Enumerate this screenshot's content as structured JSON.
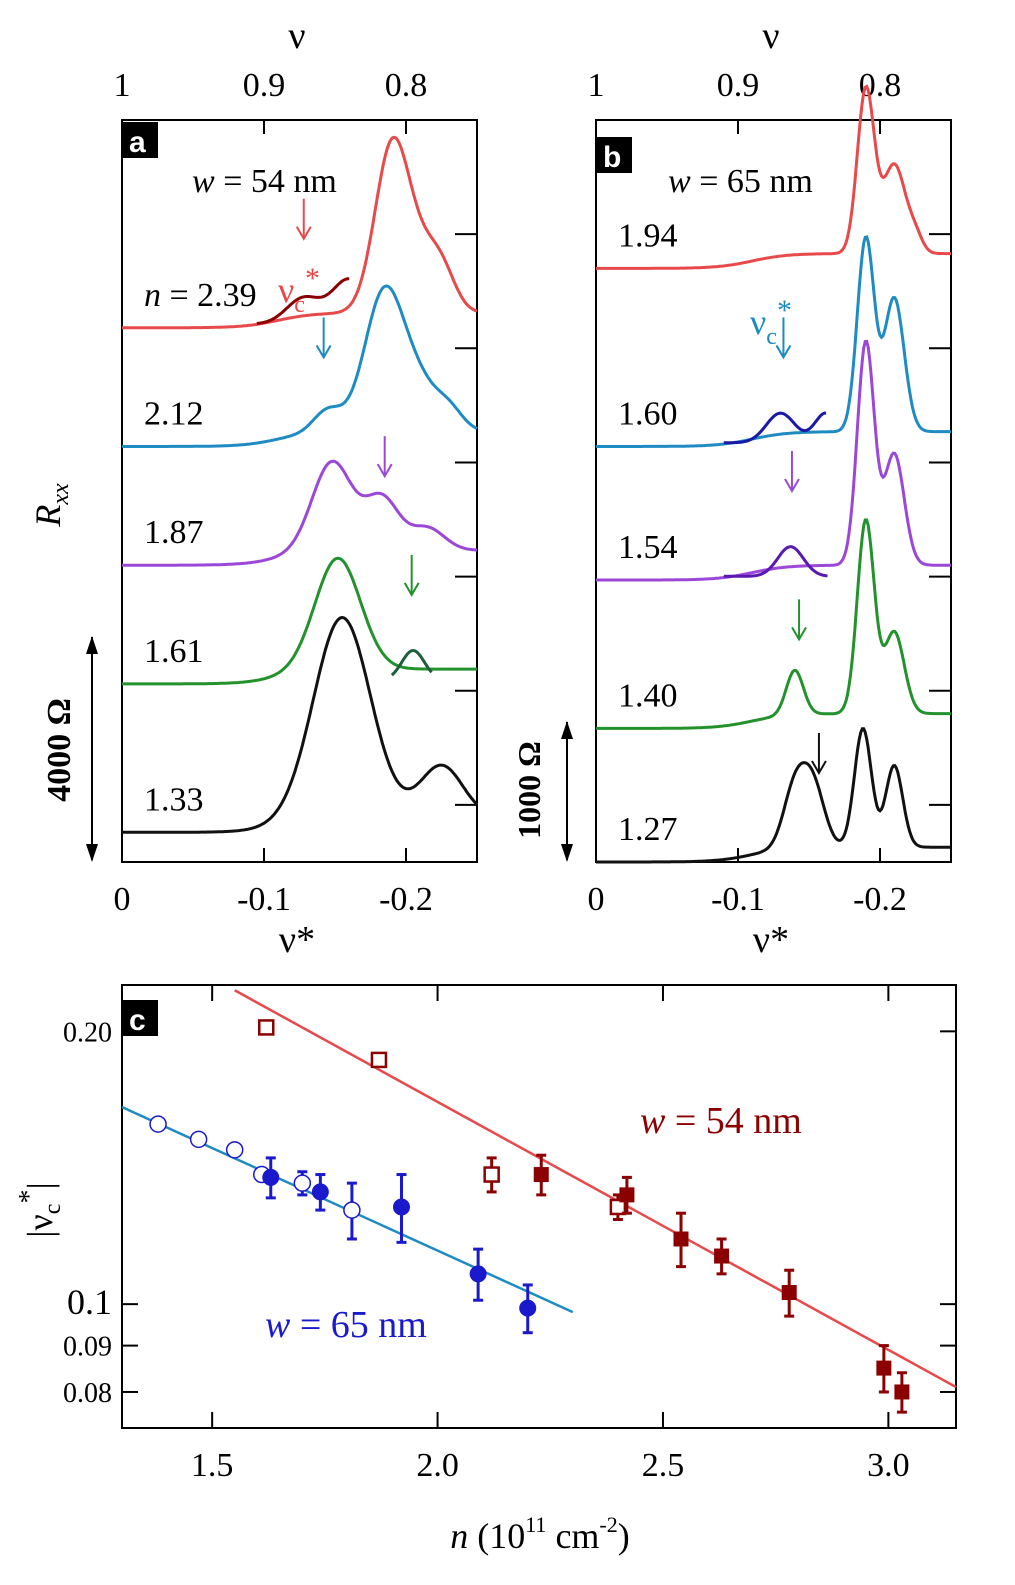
{
  "chart_data": [
    {
      "panel": "a",
      "type": "line",
      "annotation": "w = 54 nm",
      "top_axis": {
        "label": "ν",
        "ticks": [
          "1",
          "0.9",
          "0.8"
        ],
        "tick_values": [
          0,
          -0.1,
          -0.2
        ]
      },
      "bottom_axis": {
        "label": "ν*",
        "ticks": [
          "0",
          "-0.1",
          "-0.2"
        ],
        "tick_values": [
          0,
          -0.1,
          -0.2
        ],
        "range": [
          0,
          -0.25
        ]
      },
      "y_label": "R_xx",
      "scale_bar": "4000 Ω",
      "arrow_label": {
        "base": "ν",
        "sub": "c",
        "sup": "*"
      },
      "series": [
        {
          "name": "n = 2.39",
          "label_prefix": "n",
          "label_value": "= 2.39",
          "color": "#e8494a",
          "baseline": 0.72,
          "peaks": [
            [
              -0.19,
              0.22,
              0.012
            ],
            [
              -0.21,
              0.06,
              0.012
            ],
            [
              -0.225,
              0.05,
              0.01
            ]
          ],
          "arrow_x": -0.128,
          "inset": {
            "color": "#8b0000",
            "x0": -0.095,
            "x1": -0.16,
            "peaks": [
              [
                -0.128,
                0.035,
                0.012
              ],
              [
                -0.16,
                0.06,
                0.012
              ]
            ]
          }
        },
        {
          "name": "2.12",
          "label_value": "2.12",
          "color": "#1e8bc3",
          "baseline": 0.56,
          "peaks": [
            [
              -0.185,
              0.19,
              0.014
            ],
            [
              -0.145,
              0.03,
              0.01
            ],
            [
              -0.21,
              0.05,
              0.012
            ],
            [
              -0.23,
              0.03,
              0.01
            ]
          ],
          "arrow_x": -0.142
        },
        {
          "name": "1.87",
          "label_value": "1.87",
          "color": "#9b48d8",
          "baseline": 0.4,
          "peaks": [
            [
              -0.148,
              0.12,
              0.014
            ],
            [
              -0.183,
              0.07,
              0.012
            ],
            [
              -0.215,
              0.03,
              0.012
            ]
          ],
          "arrow_x": -0.185
        },
        {
          "name": "1.61",
          "label_value": "1.61",
          "color": "#23922d",
          "baseline": 0.24,
          "peaks": [
            [
              -0.152,
              0.15,
              0.016
            ]
          ],
          "arrow_x": -0.204,
          "inset": {
            "color": "#1d5f3a",
            "x0": -0.19,
            "x1": -0.218,
            "peaks": [
              [
                -0.205,
                0.04,
                0.008
              ]
            ]
          }
        },
        {
          "name": "1.33",
          "label_value": "1.33",
          "color": "#111111",
          "baseline": 0.04,
          "peaks": [
            [
              -0.155,
              0.27,
              0.02
            ],
            [
              -0.225,
              0.07,
              0.015
            ]
          ]
        }
      ]
    },
    {
      "panel": "b",
      "type": "line",
      "annotation": "w = 65 nm",
      "top_axis": {
        "label": "ν",
        "ticks": [
          "1",
          "0.9",
          "0.8"
        ],
        "tick_values": [
          0,
          -0.1,
          -0.2
        ]
      },
      "bottom_axis": {
        "label": "ν*",
        "ticks": [
          "0",
          "-0.1",
          "-0.2"
        ],
        "tick_values": [
          0,
          -0.1,
          -0.2
        ],
        "range": [
          0,
          -0.25
        ]
      },
      "scale_bar": "1000 Ω",
      "arrow_label": {
        "base": "ν",
        "sub": "c",
        "sup": "*"
      },
      "series": [
        {
          "name": "1.94",
          "label_value": "1.94",
          "color": "#e8494a",
          "baseline": 0.8,
          "peaks": [
            [
              -0.19,
              0.22,
              0.006
            ],
            [
              -0.21,
              0.12,
              0.008
            ],
            [
              -0.225,
              0.02,
              0.005
            ]
          ]
        },
        {
          "name": "1.60",
          "label_value": "1.60",
          "color": "#1e8bc3",
          "baseline": 0.56,
          "peaks": [
            [
              -0.19,
              0.26,
              0.006
            ],
            [
              -0.21,
              0.18,
              0.007
            ]
          ],
          "arrow_x": -0.132,
          "inset": {
            "color": "#1a1aa8",
            "x0": -0.09,
            "x1": -0.162,
            "peaks": [
              [
                -0.13,
                0.04,
                0.01
              ],
              [
                -0.162,
                0.04,
                0.008
              ]
            ]
          }
        },
        {
          "name": "1.54",
          "label_value": "1.54",
          "color": "#9b48d8",
          "baseline": 0.38,
          "peaks": [
            [
              -0.19,
              0.3,
              0.006
            ],
            [
              -0.21,
              0.15,
              0.007
            ]
          ],
          "arrow_x": -0.138,
          "inset": {
            "color": "#5a1ab0",
            "x0": -0.09,
            "x1": -0.163,
            "peaks": [
              [
                -0.137,
                0.04,
                0.009
              ]
            ]
          }
        },
        {
          "name": "1.40",
          "label_value": "1.40",
          "color": "#23922d",
          "baseline": 0.18,
          "peaks": [
            [
              -0.14,
              0.06,
              0.006
            ],
            [
              -0.19,
              0.26,
              0.006
            ],
            [
              -0.21,
              0.11,
              0.007
            ]
          ],
          "arrow_x": -0.143
        },
        {
          "name": "1.27",
          "label_value": "1.27",
          "color": "#111111",
          "baseline": 0.0,
          "peaks": [
            [
              -0.14,
              0.08,
              0.008
            ],
            [
              -0.153,
              0.08,
              0.008
            ],
            [
              -0.188,
              0.16,
              0.006
            ],
            [
              -0.21,
              0.11,
              0.006
            ]
          ],
          "arrow_x": -0.157
        }
      ]
    },
    {
      "panel": "c",
      "type": "scatter",
      "xlabel": {
        "base": "n (10",
        "sup1": "11",
        "mid": " cm",
        "sup2": "-2",
        "end": ")"
      },
      "ylabel": {
        "base": "|ν",
        "sub": "c",
        "sup": "*",
        "end": "|"
      },
      "y_scale": "log",
      "xlim": [
        1.3,
        3.15
      ],
      "ylim": [
        0.073,
        0.225
      ],
      "x_ticks": [
        "1.5",
        "2.0",
        "2.5",
        "3.0"
      ],
      "x_tick_values": [
        1.5,
        2.0,
        2.5,
        3.0
      ],
      "y_ticks": [
        "0.20",
        "0.1",
        "0.09",
        "0.08"
      ],
      "y_tick_values": [
        0.2,
        0.1,
        0.09,
        0.08
      ],
      "annotations": [
        {
          "prefix": "w",
          "text": " = 54 nm",
          "color": "#8b0000"
        },
        {
          "prefix": "w",
          "text": " = 65 nm",
          "color": "#1a1acc"
        }
      ],
      "series": [
        {
          "name": "w = 54 nm (open)",
          "color": "#8b0000",
          "marker": "open-square",
          "x": [
            1.62,
            1.87,
            2.12,
            2.4
          ],
          "y": [
            0.202,
            0.186,
            0.139,
            0.128
          ],
          "err": [
            0,
            0,
            0.006,
            0.004
          ]
        },
        {
          "name": "w = 54 nm (filled)",
          "color": "#8b0000",
          "marker": "square",
          "x": [
            2.23,
            2.42,
            2.54,
            2.63,
            2.78,
            2.99,
            3.03
          ],
          "y": [
            0.139,
            0.132,
            0.118,
            0.113,
            0.103,
            0.085,
            0.08
          ],
          "err": [
            0.007,
            0.006,
            0.008,
            0.005,
            0.006,
            0.005,
            0.004
          ]
        },
        {
          "name": "w = 65 nm (open)",
          "color": "#1a1acc",
          "marker": "open-circle",
          "x": [
            1.38,
            1.47,
            1.55,
            1.61,
            1.7,
            1.81
          ],
          "y": [
            0.158,
            0.152,
            0.148,
            0.139,
            0.136,
            0.127
          ],
          "err": [
            0,
            0,
            0,
            0,
            0.004,
            0.009
          ]
        },
        {
          "name": "w = 65 nm (filled)",
          "color": "#1a1acc",
          "marker": "circle",
          "x": [
            1.63,
            1.74,
            1.92,
            2.09,
            2.2
          ],
          "y": [
            0.138,
            0.133,
            0.128,
            0.108,
            0.099
          ],
          "err": [
            0.007,
            0.006,
            0.011,
            0.007,
            0.006
          ]
        }
      ],
      "fits": [
        {
          "name": "fit 54 nm",
          "color": "#e8494a",
          "x": [
            1.55,
            3.15
          ],
          "y": [
            0.222,
            0.081
          ]
        },
        {
          "name": "fit 65 nm",
          "color": "#1e8bc3",
          "x": [
            1.3,
            2.3
          ],
          "y": [
            0.165,
            0.098
          ]
        }
      ]
    }
  ]
}
